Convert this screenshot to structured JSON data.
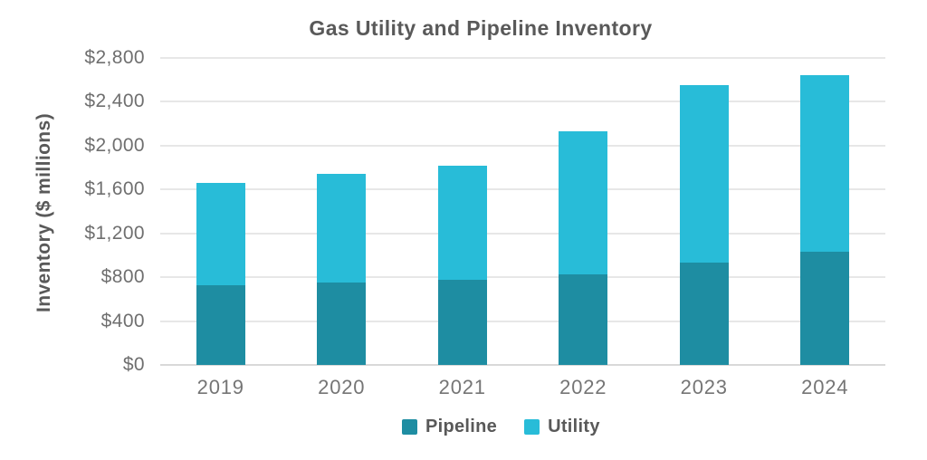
{
  "chart_data": {
    "type": "bar",
    "stacked": true,
    "title": "Gas Utility and Pipeline Inventory",
    "ylabel": "Inventory ($ millions)",
    "xlabel": "",
    "categories": [
      "2019",
      "2020",
      "2021",
      "2022",
      "2023",
      "2024"
    ],
    "series": [
      {
        "name": "Pipeline",
        "color": "#1E8DA2",
        "values": [
          730,
          755,
          775,
          830,
          930,
          1030
        ]
      },
      {
        "name": "Utility",
        "color": "#28BCD8",
        "values": [
          930,
          985,
          1040,
          1305,
          1625,
          1615
        ]
      }
    ],
    "stacked_totals": [
      1660,
      1740,
      1815,
      2135,
      2555,
      2645
    ],
    "ylim": [
      0,
      2800
    ],
    "ytick_step": 400,
    "ytick_labels": [
      "$0",
      "$400",
      "$800",
      "$1,200",
      "$1,600",
      "$2,000",
      "$2,400",
      "$2,800"
    ],
    "grid": true,
    "legend_position": "bottom"
  },
  "colors": {
    "title_text": "#595959",
    "axis_text": "#6F6F6F",
    "gridline": "#E7E7E7",
    "baseline": "#D9D9D9",
    "background": "#FFFFFF"
  }
}
